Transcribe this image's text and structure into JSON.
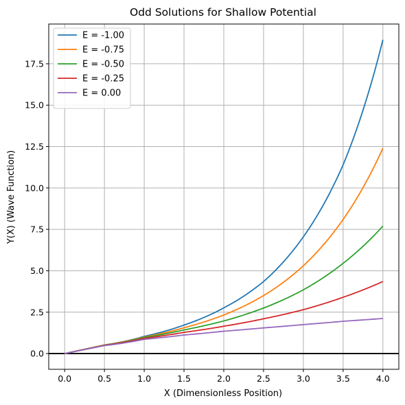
{
  "chart_data": {
    "type": "line",
    "title": "Odd Solutions for Shallow Potential",
    "xlabel": "X (Dimensionless Position)",
    "ylabel": "Y(X) (Wave Function)",
    "xlim": [
      -0.2,
      4.2
    ],
    "ylim": [
      -0.95,
      19.9
    ],
    "xticks": [
      0.0,
      0.5,
      1.0,
      1.5,
      2.0,
      2.5,
      3.0,
      3.5,
      4.0
    ],
    "xtick_labels": [
      "0.0",
      "0.5",
      "1.0",
      "1.5",
      "2.0",
      "2.5",
      "3.0",
      "3.5",
      "4.0"
    ],
    "yticks": [
      0.0,
      2.5,
      5.0,
      7.5,
      10.0,
      12.5,
      15.0,
      17.5
    ],
    "ytick_labels": [
      "0.0",
      "2.5",
      "5.0",
      "7.5",
      "10.0",
      "12.5",
      "15.0",
      "17.5"
    ],
    "grid": true,
    "legend_position": "top-left",
    "zero_line": {
      "y": 0,
      "color": "#000000"
    },
    "x": [
      0.0,
      0.5,
      1.0,
      1.5,
      2.0,
      2.5,
      3.0,
      3.5,
      4.0
    ],
    "series": [
      {
        "name": "E = -1.00",
        "color": "#1f77b4",
        "values": [
          0.0,
          0.52,
          1.04,
          1.72,
          2.76,
          4.35,
          7.05,
          11.4,
          18.95
        ]
      },
      {
        "name": "E = -0.75",
        "color": "#ff7f0e",
        "values": [
          0.0,
          0.52,
          1.0,
          1.56,
          2.33,
          3.5,
          5.3,
          8.1,
          12.4
        ]
      },
      {
        "name": "E = -0.50",
        "color": "#2ca02c",
        "values": [
          0.0,
          0.51,
          0.97,
          1.43,
          1.97,
          2.75,
          3.85,
          5.45,
          7.7
        ]
      },
      {
        "name": "E = -0.25",
        "color": "#d62728",
        "values": [
          0.0,
          0.5,
          0.92,
          1.28,
          1.65,
          2.1,
          2.65,
          3.4,
          4.35
        ]
      },
      {
        "name": "E = 0.00",
        "color": "#9467bd",
        "values": [
          0.0,
          0.48,
          0.86,
          1.12,
          1.35,
          1.55,
          1.75,
          1.95,
          2.12
        ]
      }
    ]
  }
}
